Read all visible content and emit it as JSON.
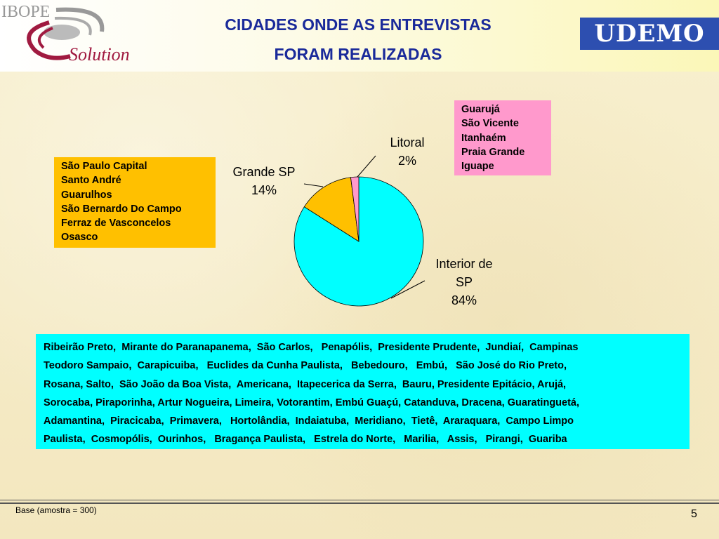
{
  "header": {
    "title_line1": "CIDADES ONDE AS ENTREVISTAS",
    "title_line2": "FORAM REALIZADAS",
    "logo_left": "IBOPE Solution",
    "logo_right": "UDEMO"
  },
  "boxes": {
    "grande_sp": [
      "São Paulo Capital",
      "Santo André",
      "Guarulhos",
      "São Bernardo Do Campo",
      "Ferraz de Vasconcelos",
      "Osasco"
    ],
    "litoral": [
      "Guarujá",
      "São Vicente",
      "Itanhaém",
      "Praia Grande",
      "Iguape"
    ],
    "interior": [
      "Ribeirão Preto,  Mirante do Paranapanema,  São Carlos,   Penapólis,  Presidente Prudente,  Jundiaí,  Campinas",
      "Teodoro Sampaio,  Carapicuiba,   Euclides da Cunha Paulista,   Bebedouro,   Embú,   São José do Rio Preto,",
      "Rosana, Salto,  São João da Boa Vista,  Americana,  Itapecerica da Serra,  Bauru, Presidente Epitácio, Arujá,",
      "Sorocaba, Piraporinha, Artur Nogueira, Limeira, Votorantim, Embú Guaçú, Catanduva, Dracena, Guaratinguetá,",
      "Adamantina,  Piracicaba,  Primavera,   Hortolândia,  Indaiatuba,  Meridiano,  Tietê,  Araraquara,  Campo Limpo",
      "Paulista,  Cosmopólis,  Ourinhos,   Bragança Paulista,   Estrela do Norte,   Marilia,   Assis,   Pirangi,  Guariba"
    ]
  },
  "chart_data": {
    "type": "pie",
    "title": "CIDADES ONDE AS ENTREVISTAS FORAM REALIZADAS",
    "slices": [
      {
        "label": "Interior de SP",
        "label_lines": [
          "Interior de",
          "SP"
        ],
        "pct_text": "84%",
        "value": 84,
        "color": "#00ffff"
      },
      {
        "label": "Grande SP",
        "label_lines": [
          "Grande SP"
        ],
        "pct_text": "14%",
        "value": 14,
        "color": "#ffc000"
      },
      {
        "label": "Litoral",
        "label_lines": [
          "Litoral"
        ],
        "pct_text": "2%",
        "value": 2,
        "color": "#ff99cc"
      }
    ]
  },
  "footer": {
    "base": "Base (amostra = 300)",
    "page": "5"
  }
}
